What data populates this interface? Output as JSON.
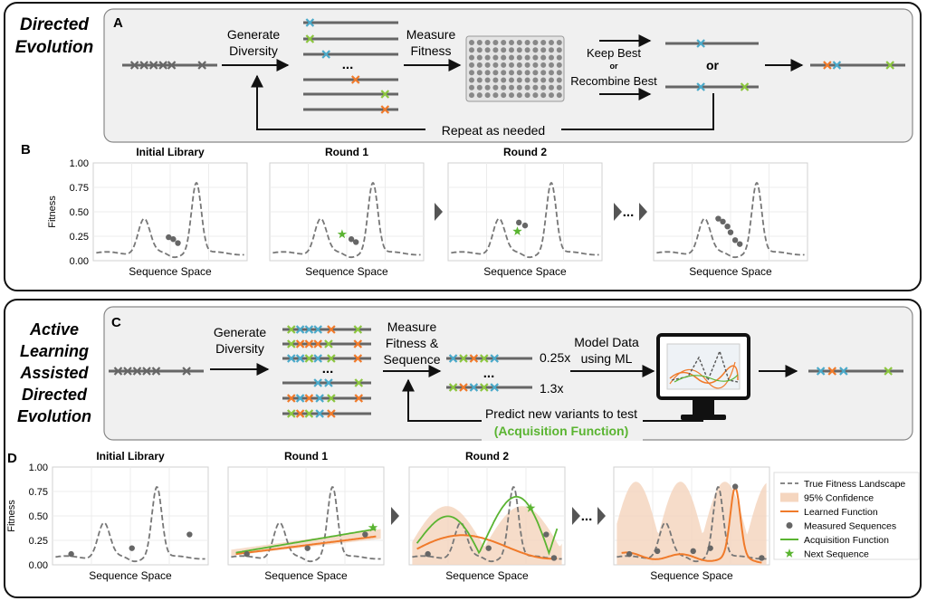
{
  "colors": {
    "blue": "#4aa9c9",
    "orange": "#f07a2a",
    "green": "#8cc63f",
    "gray": "#666666",
    "fitness_green": "#5ab431",
    "learned_orange": "#f07a2a",
    "conf_fill": "#f5d6bf",
    "true_gray": "#777777",
    "panel_fill": "#f0f0f0"
  },
  "top": {
    "title_line1": "Directed",
    "title_line2": "Evolution",
    "panel_a": "A",
    "generate": "Generate",
    "diversity": "Diversity",
    "measure": "Measure",
    "fitness": "Fitness",
    "ellipsis": "...",
    "keep_best": "Keep Best",
    "or_small": "or",
    "recombine_best": "Recombine Best",
    "or_large": "or",
    "repeat": "Repeat as needed",
    "panel_b": "B"
  },
  "bottom": {
    "title_lines": [
      "Active",
      "Learning",
      "Assisted",
      "Directed",
      "Evolution"
    ],
    "panel_c": "C",
    "generate": "Generate",
    "diversity": "Diversity",
    "measure": "Measure",
    "fitness_and": "Fitness &",
    "sequence": "Sequence",
    "ellipsis": "...",
    "fit1": "0.25x",
    "fit2": "1.3x",
    "model_data": "Model Data",
    "using_ml": "using ML",
    "predict": "Predict new variants to test",
    "acq_fn": "(Acquisition Function)",
    "panel_d": "D"
  },
  "plots": {
    "ylabel": "Fitness",
    "xlabel": "Sequence Space",
    "yticks": [
      "1.00",
      "0.75",
      "0.50",
      "0.25",
      "0.00"
    ],
    "b_titles": [
      "Initial Library",
      "Round 1",
      "Round 2",
      ""
    ],
    "d_titles": [
      "Initial Library",
      "Round 1",
      "Round 2",
      ""
    ],
    "ellipsis": "..."
  },
  "legend": {
    "items": [
      "True Fitness Landscape",
      "95% Confidence",
      "Learned Function",
      "Measured Sequences",
      "Acquisition Function",
      "Next Sequence"
    ]
  },
  "chart_data": [
    {
      "type": "line",
      "panel": "B",
      "title": "Initial Library",
      "xlabel": "Sequence Space",
      "ylabel": "Fitness",
      "ylim": [
        0,
        1
      ],
      "measured_y": [
        0.23,
        0.23,
        0.18
      ]
    },
    {
      "type": "line",
      "panel": "B",
      "title": "Round 1",
      "xlabel": "Sequence Space",
      "ylabel": "Fitness",
      "ylim": [
        0,
        1
      ],
      "measured_y": [
        0.22,
        0.2
      ],
      "next_y": [
        0.27
      ]
    },
    {
      "type": "line",
      "panel": "B",
      "title": "Round 2",
      "xlabel": "Sequence Space",
      "ylabel": "Fitness",
      "ylim": [
        0,
        1
      ],
      "measured_y": [
        0.39,
        0.36
      ],
      "next_y": [
        0.33
      ]
    },
    {
      "type": "line",
      "panel": "B",
      "title": "",
      "xlabel": "Sequence Space",
      "ylabel": "Fitness",
      "ylim": [
        0,
        1
      ],
      "measured_y": [
        0.43,
        0.4,
        0.35,
        0.27,
        0.2,
        0.18
      ]
    },
    {
      "type": "line",
      "panel": "D",
      "title": "Initial Library",
      "xlabel": "Sequence Space",
      "ylabel": "Fitness",
      "ylim": [
        0,
        1
      ],
      "measured_y": [
        0.11,
        0.17,
        0.31
      ]
    },
    {
      "type": "line",
      "panel": "D",
      "title": "Round 1",
      "xlabel": "Sequence Space",
      "ylabel": "Fitness",
      "ylim": [
        0,
        1
      ],
      "measured_y": [
        0.11,
        0.17,
        0.31
      ],
      "next_y": [
        0.38
      ]
    },
    {
      "type": "line",
      "panel": "D",
      "title": "Round 2",
      "xlabel": "Sequence Space",
      "ylabel": "Fitness",
      "ylim": [
        0,
        1
      ],
      "measured_y": [
        0.11,
        0.17,
        0.31,
        0.07
      ],
      "next_y": [
        0.58
      ]
    },
    {
      "type": "line",
      "panel": "D",
      "title": "",
      "xlabel": "Sequence Space",
      "ylabel": "Fitness",
      "ylim": [
        0,
        1
      ],
      "measured_y": [
        0.11,
        0.14,
        0.14,
        0.17,
        0.8,
        0.07
      ]
    }
  ]
}
